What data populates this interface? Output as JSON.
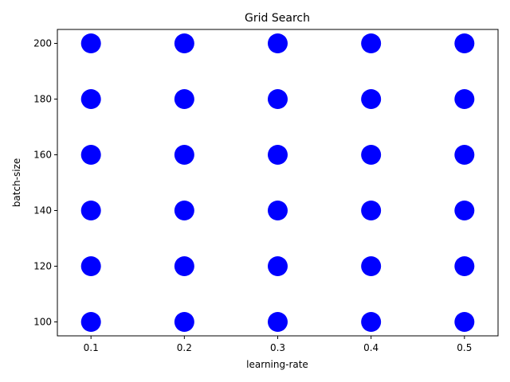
{
  "chart_data": {
    "type": "scatter",
    "title": "Grid Search",
    "xlabel": "learning-rate",
    "ylabel": "batch-size",
    "xlim": [
      0.064,
      0.536
    ],
    "ylim": [
      95,
      205
    ],
    "x_ticks": [
      0.1,
      0.2,
      0.3,
      0.4,
      0.5
    ],
    "x_tick_labels": [
      "0.1",
      "0.2",
      "0.3",
      "0.4",
      "0.5"
    ],
    "y_ticks": [
      100,
      120,
      140,
      160,
      180,
      200
    ],
    "y_tick_labels": [
      "100",
      "120",
      "140",
      "160",
      "180",
      "200"
    ],
    "grid": false,
    "marker_color": "#0000ff",
    "series": [
      {
        "points": [
          {
            "x": 0.1,
            "y": 100
          },
          {
            "x": 0.1,
            "y": 120
          },
          {
            "x": 0.1,
            "y": 140
          },
          {
            "x": 0.1,
            "y": 160
          },
          {
            "x": 0.1,
            "y": 180
          },
          {
            "x": 0.1,
            "y": 200
          },
          {
            "x": 0.2,
            "y": 100
          },
          {
            "x": 0.2,
            "y": 120
          },
          {
            "x": 0.2,
            "y": 140
          },
          {
            "x": 0.2,
            "y": 160
          },
          {
            "x": 0.2,
            "y": 180
          },
          {
            "x": 0.2,
            "y": 200
          },
          {
            "x": 0.3,
            "y": 100
          },
          {
            "x": 0.3,
            "y": 120
          },
          {
            "x": 0.3,
            "y": 140
          },
          {
            "x": 0.3,
            "y": 160
          },
          {
            "x": 0.3,
            "y": 180
          },
          {
            "x": 0.3,
            "y": 200
          },
          {
            "x": 0.4,
            "y": 100
          },
          {
            "x": 0.4,
            "y": 120
          },
          {
            "x": 0.4,
            "y": 140
          },
          {
            "x": 0.4,
            "y": 160
          },
          {
            "x": 0.4,
            "y": 180
          },
          {
            "x": 0.4,
            "y": 200
          },
          {
            "x": 0.5,
            "y": 100
          },
          {
            "x": 0.5,
            "y": 120
          },
          {
            "x": 0.5,
            "y": 140
          },
          {
            "x": 0.5,
            "y": 160
          },
          {
            "x": 0.5,
            "y": 180
          },
          {
            "x": 0.5,
            "y": 200
          }
        ]
      }
    ]
  }
}
